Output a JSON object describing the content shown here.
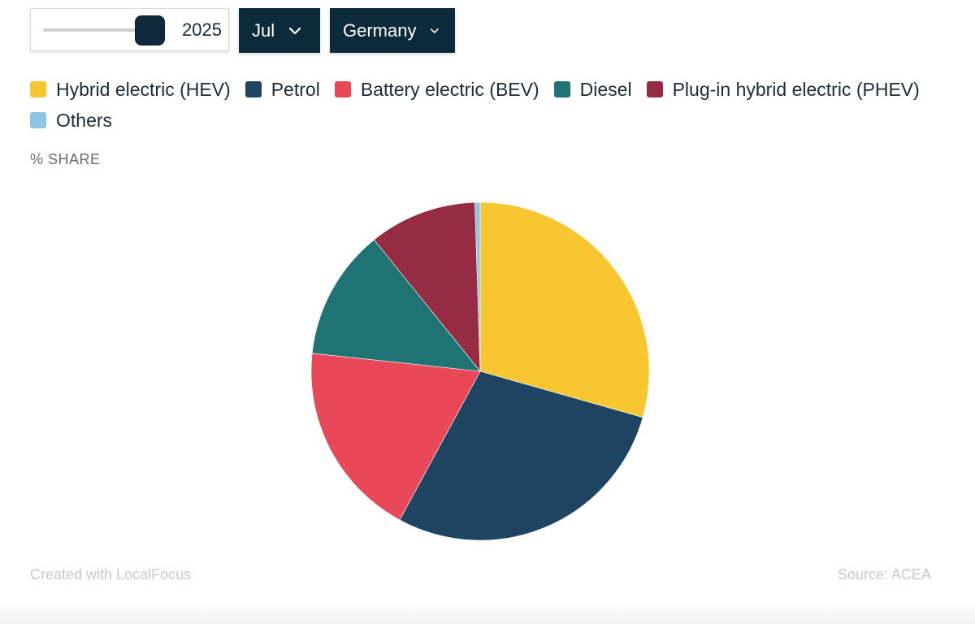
{
  "controls": {
    "year_value": "2025",
    "month_label": "Jul",
    "country_label": "Germany",
    "slider_level": 0.84
  },
  "legend": [
    {
      "label": "Hybrid electric (HEV)",
      "color": "#f8c630"
    },
    {
      "label": "Petrol",
      "color": "#1e4462"
    },
    {
      "label": "Battery electric (BEV)",
      "color": "#e94858"
    },
    {
      "label": "Diesel",
      "color": "#1f7373"
    },
    {
      "label": "Plug-in hybrid electric (PHEV)",
      "color": "#952c43"
    },
    {
      "label": "Others",
      "color": "#8fc4e6"
    }
  ],
  "ylabel": "% SHARE",
  "footer": {
    "credit": "Created with LocalFocus",
    "source": "Source:  ACEA"
  },
  "chart_data": {
    "type": "pie",
    "categories": [
      "Hybrid electric (HEV)",
      "Petrol",
      "Battery electric (BEV)",
      "Diesel",
      "Plug-in hybrid electric (PHEV)",
      "Others"
    ],
    "values": [
      29.4,
      28.5,
      18.8,
      12.5,
      10.3,
      0.5
    ],
    "colors": [
      "#f8c630",
      "#1e4462",
      "#e94858",
      "#1f7373",
      "#952c43",
      "#8fc4e6"
    ],
    "unit": "% SHARE"
  }
}
